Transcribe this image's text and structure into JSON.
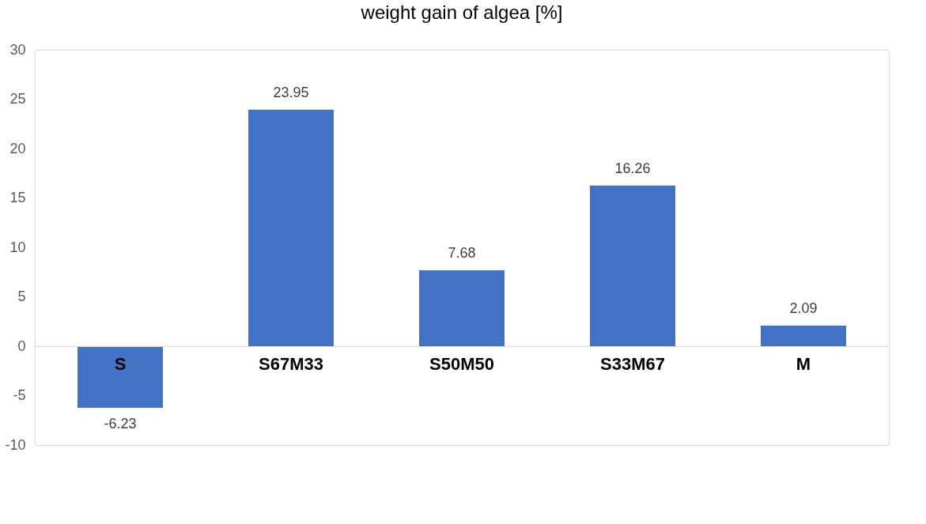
{
  "chart_data": {
    "type": "bar",
    "title": "weight gain of algea [%]",
    "categories": [
      "S",
      "S67M33",
      "S50M50",
      "S33M67",
      "M"
    ],
    "values": [
      -6.23,
      23.95,
      7.68,
      16.26,
      2.09
    ],
    "color": "#4472c4",
    "ylim": [
      -10,
      30
    ],
    "yticks": [
      -10,
      -5,
      0,
      5,
      10,
      15,
      20,
      25,
      30
    ],
    "data_labels": true,
    "grid": false
  }
}
